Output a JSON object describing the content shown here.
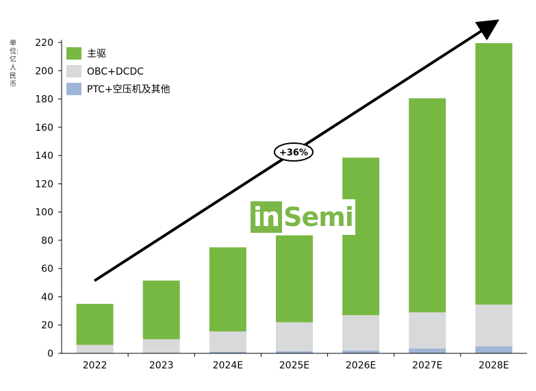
{
  "unit_label": "单位:亿人民币",
  "growth_label": "+36%",
  "logo": {
    "part1": "in",
    "part2": "Semi"
  },
  "colors": {
    "main_drive": "#77b843",
    "obc": "#d8d9da",
    "ptc": "#9fb5d6"
  },
  "chart_data": {
    "type": "bar",
    "stacked": true,
    "categories": [
      "2022",
      "2023",
      "2024E",
      "2025E",
      "2026E",
      "2027E",
      "2028E"
    ],
    "series": [
      {
        "name": "PTC+空压机及其他",
        "values": [
          0,
          0,
          1,
          1.5,
          2,
          3.5,
          5
        ]
      },
      {
        "name": "OBC+DCDC",
        "values": [
          6,
          10,
          14.5,
          20.5,
          25,
          25.5,
          29.5
        ]
      },
      {
        "name": "主驱",
        "values": [
          29,
          41.5,
          59.5,
          61.5,
          111.5,
          151.5,
          185
        ]
      }
    ],
    "ylim": [
      0,
      220
    ],
    "yticks": [
      "0",
      "20",
      "40",
      "60",
      "80",
      "100",
      "120",
      "140",
      "160",
      "180",
      "200",
      "220"
    ],
    "legend_position": "top-left",
    "legend_order": [
      "主驱",
      "OBC+DCDC",
      "PTC+空压机及其他"
    ],
    "grid": false,
    "annotation": "+36%"
  }
}
